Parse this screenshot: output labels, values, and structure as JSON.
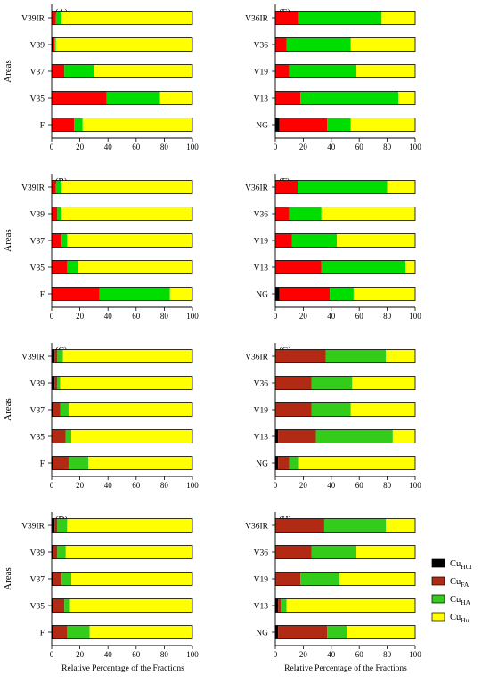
{
  "figure": {
    "y_axis_label": "Areas",
    "x_axis_label": "Relative Percentage of the Fractions",
    "x_ticks": [
      "0",
      "20",
      "40",
      "60",
      "80",
      "100"
    ]
  },
  "legend": {
    "items": [
      {
        "base": "Cu",
        "sub": "HCl",
        "color": "#000000"
      },
      {
        "base": "Cu",
        "sub": "FA",
        "color": "#b22a13"
      },
      {
        "base": "Cu",
        "sub": "HA",
        "color": "#33cc1a"
      },
      {
        "base": "Cu",
        "sub": "Hu",
        "color": "#ffff00"
      }
    ]
  },
  "colors": {
    "HCl": "#000000",
    "FA_bright": "#ff0000",
    "FA_dark": "#b22a13",
    "HA_bright": "#00dd00",
    "HA_dull": "#33cc1a",
    "Hu": "#ffff00"
  },
  "chart_data": [
    {
      "type": "bar",
      "orientation": "horizontal",
      "stacked": true,
      "panel": "(A)",
      "xlim": [
        0,
        100
      ],
      "fa_color": "#ff0000",
      "ha_color": "#00dd00",
      "categories": [
        "V39IR",
        "V39",
        "V37",
        "V35",
        "F"
      ],
      "series": [
        {
          "name": "CuHCl",
          "values": [
            0,
            1,
            0,
            0,
            0
          ]
        },
        {
          "name": "CuFA",
          "values": [
            3,
            1,
            9,
            39,
            16
          ]
        },
        {
          "name": "CuHA",
          "values": [
            4,
            1,
            21,
            38,
            6
          ]
        },
        {
          "name": "CuHu",
          "values": [
            93,
            97,
            70,
            23,
            78
          ]
        }
      ]
    },
    {
      "type": "bar",
      "orientation": "horizontal",
      "stacked": true,
      "panel": "(E)",
      "xlim": [
        0,
        100
      ],
      "fa_color": "#ff0000",
      "ha_color": "#00dd00",
      "categories": [
        "V36IR",
        "V36",
        "V19",
        "V13",
        "NG"
      ],
      "series": [
        {
          "name": "CuHCl",
          "values": [
            0,
            0,
            0,
            0,
            3
          ]
        },
        {
          "name": "CuFA",
          "values": [
            17,
            8,
            10,
            18,
            34
          ]
        },
        {
          "name": "CuHA",
          "values": [
            59,
            46,
            48,
            70,
            17
          ]
        },
        {
          "name": "CuHu",
          "values": [
            24,
            46,
            42,
            12,
            46
          ]
        }
      ]
    },
    {
      "type": "bar",
      "orientation": "horizontal",
      "stacked": true,
      "panel": "(B)",
      "xlim": [
        0,
        100
      ],
      "fa_color": "#ff0000",
      "ha_color": "#00dd00",
      "categories": [
        "V39IR",
        "V39",
        "V37",
        "V35",
        "F"
      ],
      "series": [
        {
          "name": "CuHCl",
          "values": [
            0,
            0,
            0,
            0,
            0
          ]
        },
        {
          "name": "CuFA",
          "values": [
            3,
            4,
            7,
            11,
            34
          ]
        },
        {
          "name": "CuHA",
          "values": [
            4,
            3,
            4,
            8,
            50
          ]
        },
        {
          "name": "CuHu",
          "values": [
            93,
            93,
            89,
            81,
            16
          ]
        }
      ]
    },
    {
      "type": "bar",
      "orientation": "horizontal",
      "stacked": true,
      "panel": "(F)",
      "xlim": [
        0,
        100
      ],
      "fa_color": "#ff0000",
      "ha_color": "#00dd00",
      "categories": [
        "V36IR",
        "V36",
        "V19",
        "V13",
        "NG"
      ],
      "series": [
        {
          "name": "CuHCl",
          "values": [
            0,
            0,
            0,
            0,
            3
          ]
        },
        {
          "name": "CuFA",
          "values": [
            16,
            10,
            12,
            33,
            36
          ]
        },
        {
          "name": "CuHA",
          "values": [
            64,
            23,
            32,
            60,
            17
          ]
        },
        {
          "name": "CuHu",
          "values": [
            20,
            67,
            56,
            7,
            44
          ]
        }
      ]
    },
    {
      "type": "bar",
      "orientation": "horizontal",
      "stacked": true,
      "panel": "(C)",
      "xlim": [
        0,
        100
      ],
      "fa_color": "#b22a13",
      "ha_color": "#33cc1a",
      "categories": [
        "V39IR",
        "V39",
        "V37",
        "V35",
        "F"
      ],
      "series": [
        {
          "name": "CuHCl",
          "values": [
            2,
            2,
            1,
            0,
            1
          ]
        },
        {
          "name": "CuFA",
          "values": [
            2,
            2,
            5,
            10,
            11
          ]
        },
        {
          "name": "CuHA",
          "values": [
            4,
            2,
            6,
            4,
            14
          ]
        },
        {
          "name": "CuHu",
          "values": [
            92,
            94,
            88,
            86,
            74
          ]
        }
      ]
    },
    {
      "type": "bar",
      "orientation": "horizontal",
      "stacked": true,
      "panel": "(G)",
      "xlim": [
        0,
        100
      ],
      "fa_color": "#b22a13",
      "ha_color": "#33cc1a",
      "categories": [
        "V36IR",
        "V36",
        "V19",
        "V13",
        "NG"
      ],
      "series": [
        {
          "name": "CuHCl",
          "values": [
            0,
            0,
            0,
            2,
            2
          ]
        },
        {
          "name": "CuFA",
          "values": [
            36,
            26,
            26,
            27,
            8
          ]
        },
        {
          "name": "CuHA",
          "values": [
            43,
            29,
            28,
            55,
            7
          ]
        },
        {
          "name": "CuHu",
          "values": [
            21,
            45,
            46,
            16,
            83
          ]
        }
      ]
    },
    {
      "type": "bar",
      "orientation": "horizontal",
      "stacked": true,
      "panel": "(D)",
      "xlim": [
        0,
        100
      ],
      "fa_color": "#b22a13",
      "ha_color": "#33cc1a",
      "categories": [
        "V39IR",
        "V39",
        "V37",
        "V35",
        "F"
      ],
      "series": [
        {
          "name": "CuHCl",
          "values": [
            2,
            1,
            1,
            1,
            1
          ]
        },
        {
          "name": "CuFA",
          "values": [
            2,
            3,
            6,
            8,
            10
          ]
        },
        {
          "name": "CuHA",
          "values": [
            7,
            6,
            7,
            4,
            16
          ]
        },
        {
          "name": "CuHu",
          "values": [
            89,
            90,
            86,
            87,
            73
          ]
        }
      ]
    },
    {
      "type": "bar",
      "orientation": "horizontal",
      "stacked": true,
      "panel": "(H)",
      "xlim": [
        0,
        100
      ],
      "fa_color": "#b22a13",
      "ha_color": "#33cc1a",
      "categories": [
        "V36IR",
        "V36",
        "V19",
        "V13",
        "NG"
      ],
      "series": [
        {
          "name": "CuHCl",
          "values": [
            0,
            0,
            0,
            2,
            2
          ]
        },
        {
          "name": "CuFA",
          "values": [
            35,
            26,
            18,
            2,
            35
          ]
        },
        {
          "name": "CuHA",
          "values": [
            44,
            32,
            28,
            4,
            14
          ]
        },
        {
          "name": "CuHu",
          "values": [
            21,
            42,
            54,
            92,
            49
          ]
        }
      ]
    }
  ]
}
